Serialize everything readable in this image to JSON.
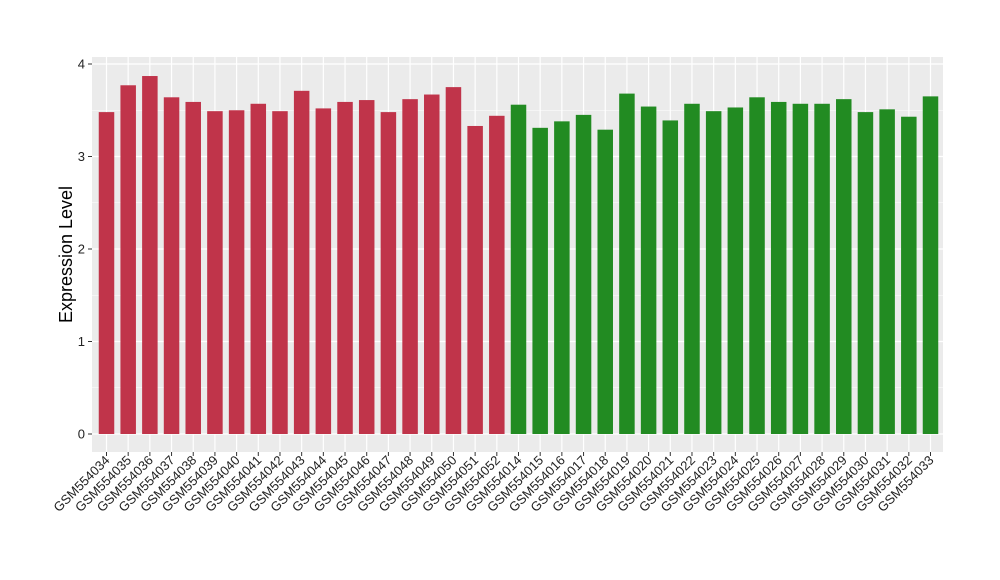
{
  "chart_data": {
    "type": "bar",
    "title": "",
    "xlabel": "",
    "ylabel": "Expression Level",
    "ylim": [
      0,
      4
    ],
    "yticks": [
      0,
      1,
      2,
      3,
      4
    ],
    "grid": true,
    "legend": "none",
    "colors": {
      "group1": "#c0344a",
      "group2": "#228b22",
      "panel": "#ebebeb",
      "gridline": "#ffffff"
    },
    "categories": [
      "GSM554034",
      "GSM554035",
      "GSM554036",
      "GSM554037",
      "GSM554038",
      "GSM554039",
      "GSM554040",
      "GSM554041",
      "GSM554042",
      "GSM554043",
      "GSM554044",
      "GSM554045",
      "GSM554046",
      "GSM554047",
      "GSM554048",
      "GSM554049",
      "GSM554050",
      "GSM554051",
      "GSM554052",
      "GSM554014",
      "GSM554015",
      "GSM554016",
      "GSM554017",
      "GSM554018",
      "GSM554019",
      "GSM554020",
      "GSM554021",
      "GSM554022",
      "GSM554023",
      "GSM554024",
      "GSM554025",
      "GSM554026",
      "GSM554027",
      "GSM554028",
      "GSM554029",
      "GSM554030",
      "GSM554031",
      "GSM554032",
      "GSM554033"
    ],
    "values": [
      3.48,
      3.77,
      3.87,
      3.64,
      3.59,
      3.49,
      3.5,
      3.57,
      3.49,
      3.71,
      3.52,
      3.59,
      3.61,
      3.48,
      3.62,
      3.67,
      3.75,
      3.33,
      3.44,
      3.56,
      3.31,
      3.38,
      3.45,
      3.29,
      3.68,
      3.54,
      3.39,
      3.57,
      3.49,
      3.53,
      3.64,
      3.59,
      3.57,
      3.57,
      3.62,
      3.48,
      3.51,
      3.43,
      3.65
    ],
    "groups": [
      "group1",
      "group1",
      "group1",
      "group1",
      "group1",
      "group1",
      "group1",
      "group1",
      "group1",
      "group1",
      "group1",
      "group1",
      "group1",
      "group1",
      "group1",
      "group1",
      "group1",
      "group1",
      "group1",
      "group2",
      "group2",
      "group2",
      "group2",
      "group2",
      "group2",
      "group2",
      "group2",
      "group2",
      "group2",
      "group2",
      "group2",
      "group2",
      "group2",
      "group2",
      "group2",
      "group2",
      "group2",
      "group2",
      "group2"
    ]
  }
}
